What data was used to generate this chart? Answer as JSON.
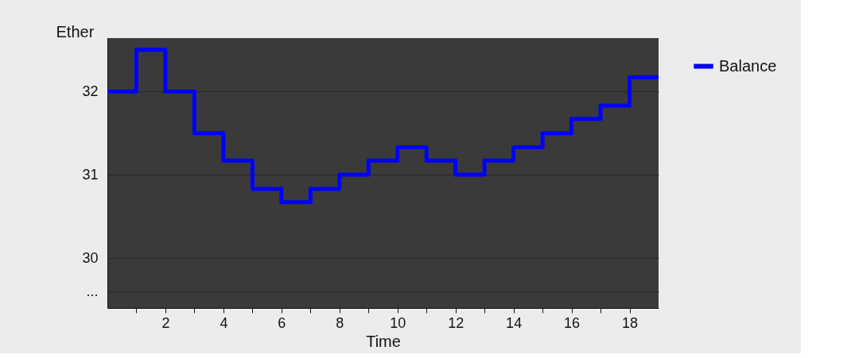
{
  "chart_data": {
    "type": "step",
    "xlabel": "Time",
    "ylabel": "Ether",
    "x": [
      0,
      1,
      2,
      3,
      4,
      5,
      6,
      7,
      8,
      9,
      10,
      11,
      12,
      13,
      14,
      15,
      16,
      17,
      18,
      19
    ],
    "series": [
      {
        "name": "Balance",
        "color": "#0000ff",
        "values": [
          32,
          32.5,
          32,
          31.5,
          31.17,
          30.83,
          30.67,
          30.83,
          31,
          31.17,
          31.33,
          31.17,
          31,
          31.17,
          31.33,
          31.5,
          31.67,
          31.83,
          32.17,
          32.17
        ]
      }
    ],
    "xlim": [
      0,
      19
    ],
    "xticks": [
      {
        "value": 1,
        "label": null
      },
      2,
      {
        "value": 3,
        "label": null
      },
      4,
      {
        "value": 5,
        "label": null
      },
      6,
      {
        "value": 7,
        "label": null
      },
      8,
      {
        "value": 9,
        "label": null
      },
      10,
      {
        "value": 11,
        "label": null
      },
      12,
      {
        "value": 13,
        "label": null
      },
      14,
      {
        "value": 15,
        "label": null
      },
      16,
      {
        "value": 17,
        "label": null
      },
      18
    ],
    "ylim": [
      29.4,
      32.64
    ],
    "yticks": [
      {
        "value": 29.6,
        "label": "..."
      },
      30,
      31,
      32
    ],
    "grid": "y",
    "legend": "right",
    "marker": "none",
    "line_style": "solid"
  }
}
